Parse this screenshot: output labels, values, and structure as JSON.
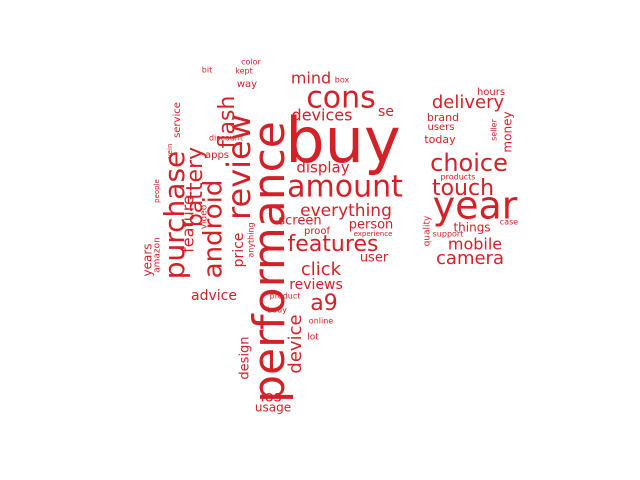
{
  "color": "#d42127",
  "words": [
    {
      "text": "buy",
      "weight": 100
    },
    {
      "text": "performance",
      "weight": 92
    },
    {
      "text": "year",
      "weight": 70
    },
    {
      "text": "review",
      "weight": 65
    },
    {
      "text": "cons",
      "weight": 62
    },
    {
      "text": "amount",
      "weight": 60
    },
    {
      "text": "purchase",
      "weight": 58
    },
    {
      "text": "android",
      "weight": 56
    },
    {
      "text": "battery",
      "weight": 50
    },
    {
      "text": "choice",
      "weight": 52
    },
    {
      "text": "touch",
      "weight": 50
    },
    {
      "text": "features",
      "weight": 48
    },
    {
      "text": "delivery",
      "weight": 42
    },
    {
      "text": "flash",
      "weight": 44
    },
    {
      "text": "feature",
      "weight": 40
    },
    {
      "text": "a9",
      "weight": 42
    },
    {
      "text": "everything",
      "weight": 38
    },
    {
      "text": "click",
      "weight": 38
    },
    {
      "text": "device",
      "weight": 36
    },
    {
      "text": "camera",
      "weight": 36
    },
    {
      "text": "mobile",
      "weight": 34
    },
    {
      "text": "devices",
      "weight": 34
    },
    {
      "text": "mind",
      "weight": 32
    },
    {
      "text": "display",
      "weight": 32
    },
    {
      "text": "reviews",
      "weight": 30
    },
    {
      "text": "advice",
      "weight": 30
    },
    {
      "text": "ios",
      "weight": 30
    },
    {
      "text": "person",
      "weight": 28
    },
    {
      "text": "screen",
      "weight": 28
    },
    {
      "text": "price",
      "weight": 28
    },
    {
      "text": "user",
      "weight": 26
    },
    {
      "text": "se",
      "weight": 26
    },
    {
      "text": "things",
      "weight": 24
    },
    {
      "text": "design",
      "weight": 24
    },
    {
      "text": "usage",
      "weight": 24
    },
    {
      "text": "years",
      "weight": 22
    },
    {
      "text": "money",
      "weight": 22
    },
    {
      "text": "today",
      "weight": 22
    },
    {
      "text": "brand",
      "weight": 20
    },
    {
      "text": "users",
      "weight": 20
    },
    {
      "text": "proof",
      "weight": 20
    },
    {
      "text": "service",
      "weight": 18
    },
    {
      "text": "apps",
      "weight": 18
    },
    {
      "text": "way",
      "weight": 18
    },
    {
      "text": "hours",
      "weight": 16
    },
    {
      "text": "seller",
      "weight": 16
    },
    {
      "text": "quality",
      "weight": 16
    },
    {
      "text": "video",
      "weight": 16
    },
    {
      "text": "lot",
      "weight": 16
    },
    {
      "text": "amazon",
      "weight": 16
    },
    {
      "text": "kept",
      "weight": 14
    },
    {
      "text": "bit",
      "weight": 14
    },
    {
      "text": "color",
      "weight": 14
    },
    {
      "text": "box",
      "weight": 14
    },
    {
      "text": "discount",
      "weight": 14
    },
    {
      "text": "vein",
      "weight": 14
    },
    {
      "text": "anything",
      "weight": 14
    },
    {
      "text": "product",
      "weight": 14
    },
    {
      "text": "body",
      "weight": 14
    },
    {
      "text": "online",
      "weight": 14
    },
    {
      "text": "products",
      "weight": 14
    },
    {
      "text": "support",
      "weight": 14
    },
    {
      "text": "case",
      "weight": 14
    },
    {
      "text": "experience",
      "weight": 12
    },
    {
      "text": "people",
      "weight": 12
    }
  ]
}
